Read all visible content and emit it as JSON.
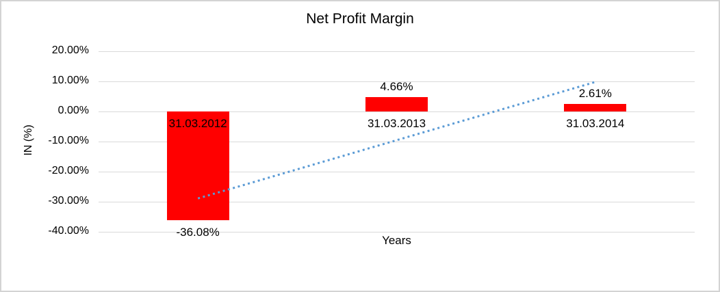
{
  "chart_data": {
    "type": "bar",
    "title": "Net Profit Margin",
    "xlabel": "Years",
    "ylabel": "IN (%)",
    "categories": [
      "31.03.2012",
      "31.03.2013",
      "31.03.2014"
    ],
    "values": [
      -36.08,
      4.66,
      2.61
    ],
    "data_labels": [
      "-36.08%",
      "4.66%",
      "2.61%"
    ],
    "yticks": [
      20,
      10,
      0,
      -10,
      -20,
      -30,
      -40
    ],
    "ytick_labels": [
      "20.00%",
      "10.00%",
      "0.00%",
      "-10.00%",
      "-20.00%",
      "-30.00%",
      "-40.00%"
    ],
    "ylim": [
      -40,
      20
    ],
    "grid": true,
    "legend": "none",
    "bar_color": "#ff0000",
    "gridline_color": "#d9d9d9",
    "trendline": {
      "style": "dotted",
      "color": "#5b9bd5",
      "start_category_index": 0,
      "end_category_index": 2,
      "start_value": -28.9,
      "end_value": 9.8
    }
  }
}
